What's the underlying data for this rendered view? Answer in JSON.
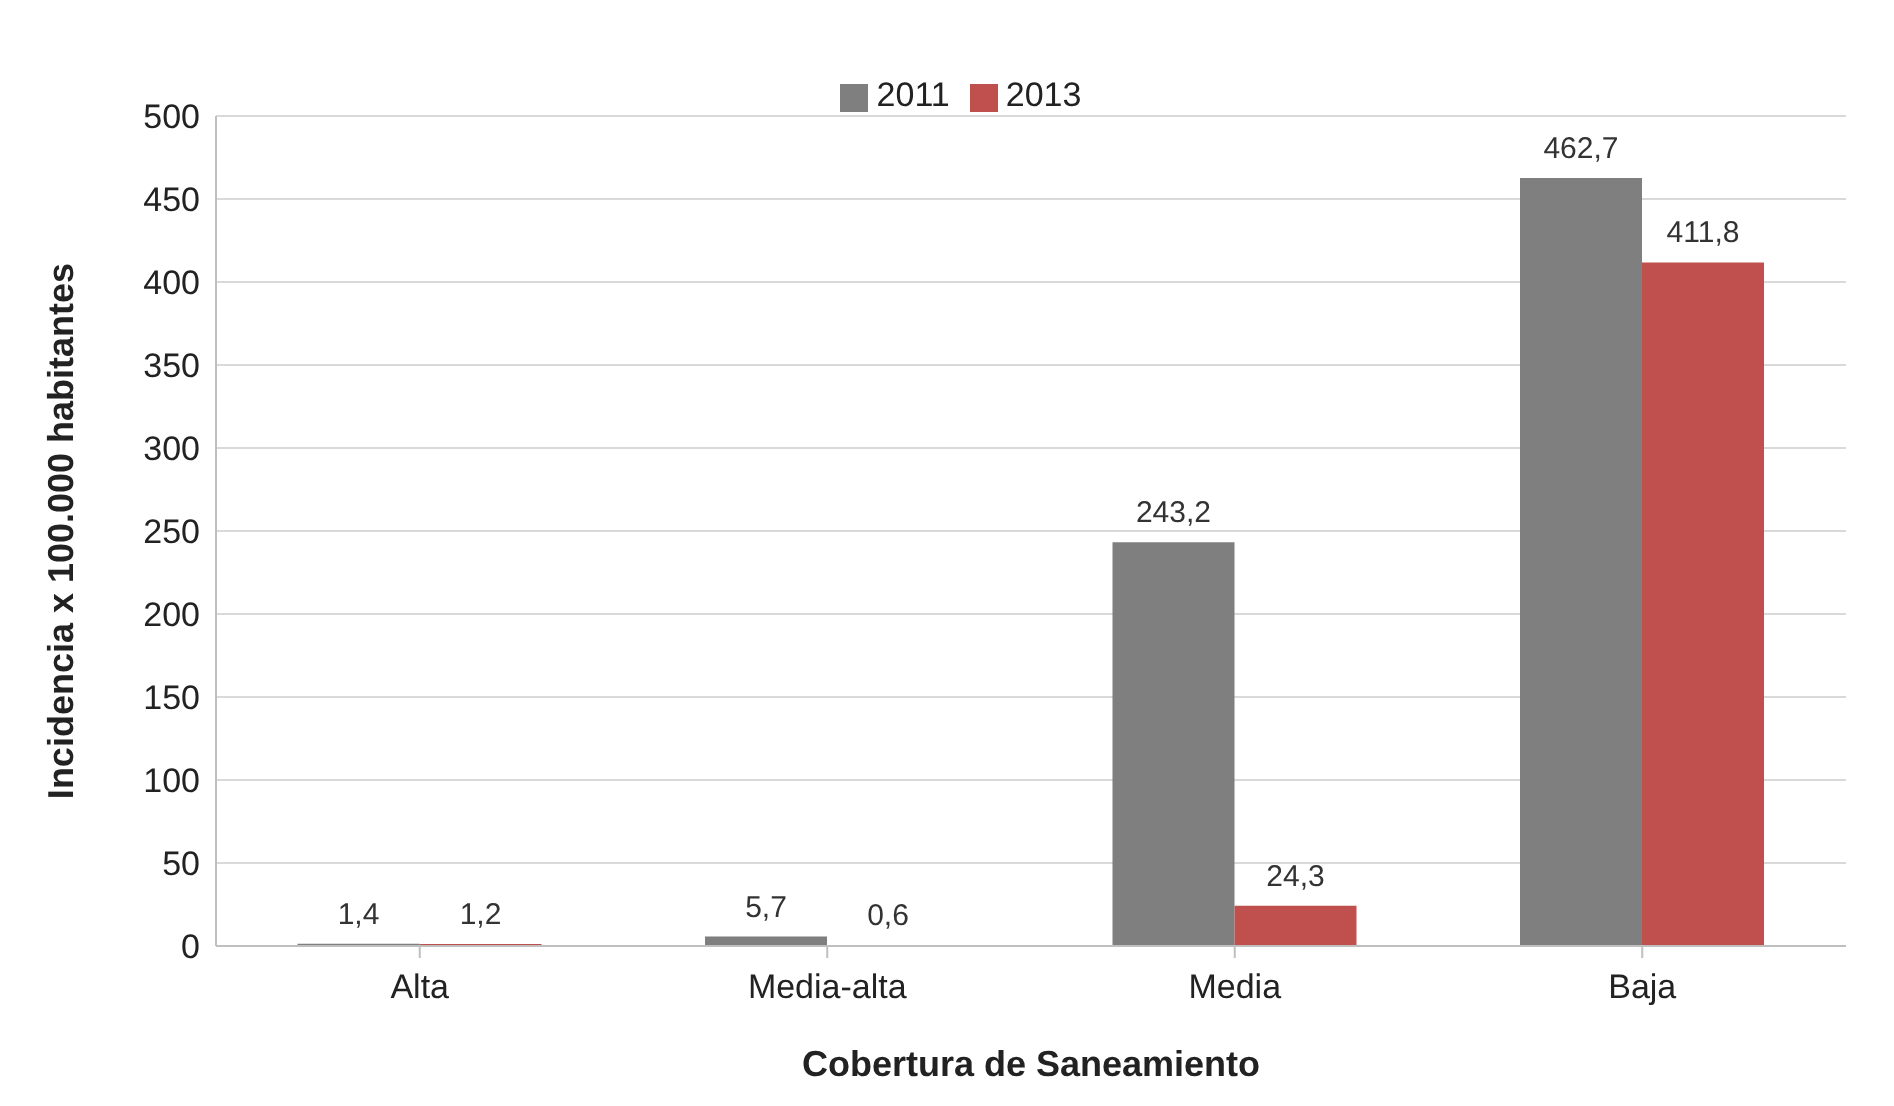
{
  "chart_data": {
    "type": "bar",
    "xlabel": "Cobertura de Saneamiento",
    "ylabel": "Incidencia x 100.000 habitantes",
    "categories": [
      "Alta",
      "Media-alta",
      "Media",
      "Baja"
    ],
    "series": [
      {
        "name": "2011",
        "color": "#7f7f7f",
        "values": [
          1.4,
          5.7,
          243.2,
          462.7
        ],
        "value_labels": [
          "1,4",
          "5,7",
          "243,2",
          "462,7"
        ]
      },
      {
        "name": "2013",
        "color": "#c0504d",
        "values": [
          1.2,
          0.6,
          24.3,
          411.8
        ],
        "value_labels": [
          "1,2",
          "0,6",
          "24,3",
          "411,8"
        ]
      }
    ],
    "ylim": [
      0,
      500
    ],
    "yticks": [
      0,
      50,
      100,
      150,
      200,
      250,
      300,
      350,
      400,
      450,
      500
    ],
    "grid": "y",
    "legend": "top"
  }
}
